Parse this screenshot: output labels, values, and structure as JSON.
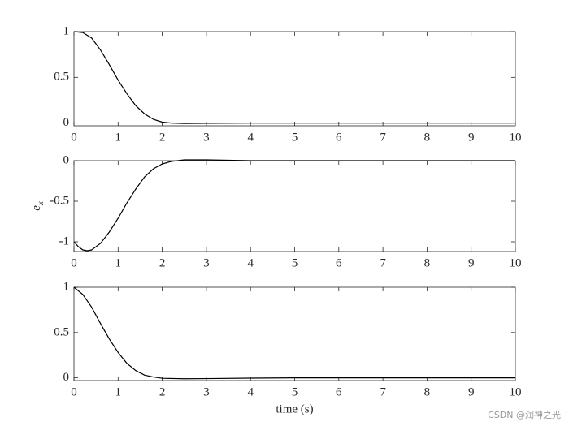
{
  "chart_data": [
    {
      "type": "line",
      "xlim": [
        0,
        10
      ],
      "ylim": [
        -0.03,
        1
      ],
      "xticks": [
        0,
        1,
        2,
        3,
        4,
        5,
        6,
        7,
        8,
        9,
        10
      ],
      "yticks": [
        0,
        0.5,
        1
      ],
      "series": [
        {
          "color": "#000000",
          "x": [
            0,
            0.2,
            0.4,
            0.6,
            0.8,
            1.0,
            1.2,
            1.4,
            1.6,
            1.8,
            2.0,
            2.2,
            2.5,
            3,
            4,
            10
          ],
          "values": [
            1,
            0.99,
            0.93,
            0.8,
            0.64,
            0.47,
            0.32,
            0.19,
            0.1,
            0.04,
            0.01,
            0,
            -0.005,
            -0.003,
            0,
            0
          ]
        }
      ]
    },
    {
      "type": "line",
      "xlim": [
        0,
        10
      ],
      "ylim": [
        -1.12,
        0
      ],
      "xticks": [
        0,
        1,
        2,
        3,
        4,
        5,
        6,
        7,
        8,
        9,
        10
      ],
      "yticks": [
        0,
        -0.5,
        -1
      ],
      "ylabel": [
        "e",
        "x"
      ],
      "series": [
        {
          "color": "#000000",
          "x": [
            0,
            0.1,
            0.2,
            0.3,
            0.4,
            0.6,
            0.8,
            1.0,
            1.2,
            1.4,
            1.6,
            1.8,
            2.0,
            2.2,
            2.5,
            3,
            3.5,
            4,
            10
          ],
          "values": [
            -1,
            -1.06,
            -1.1,
            -1.11,
            -1.1,
            -1.02,
            -0.88,
            -0.71,
            -0.52,
            -0.35,
            -0.2,
            -0.1,
            -0.04,
            -0.01,
            0.01,
            0.01,
            0.005,
            0,
            0
          ]
        }
      ]
    },
    {
      "type": "line",
      "xlim": [
        0,
        10
      ],
      "ylim": [
        -0.03,
        1
      ],
      "xticks": [
        0,
        1,
        2,
        3,
        4,
        5,
        6,
        7,
        8,
        9,
        10
      ],
      "yticks": [
        0,
        0.5,
        1
      ],
      "xlabel": "time (s)",
      "series": [
        {
          "color": "#000000",
          "x": [
            0,
            0.2,
            0.4,
            0.6,
            0.8,
            1.0,
            1.2,
            1.4,
            1.6,
            1.8,
            2.0,
            2.5,
            3,
            4,
            5,
            10
          ],
          "values": [
            1,
            0.92,
            0.78,
            0.6,
            0.43,
            0.28,
            0.16,
            0.08,
            0.03,
            0.01,
            -0.005,
            -0.01,
            -0.008,
            -0.003,
            0,
            0
          ]
        }
      ]
    }
  ],
  "watermark": "CSDN @润神之光"
}
